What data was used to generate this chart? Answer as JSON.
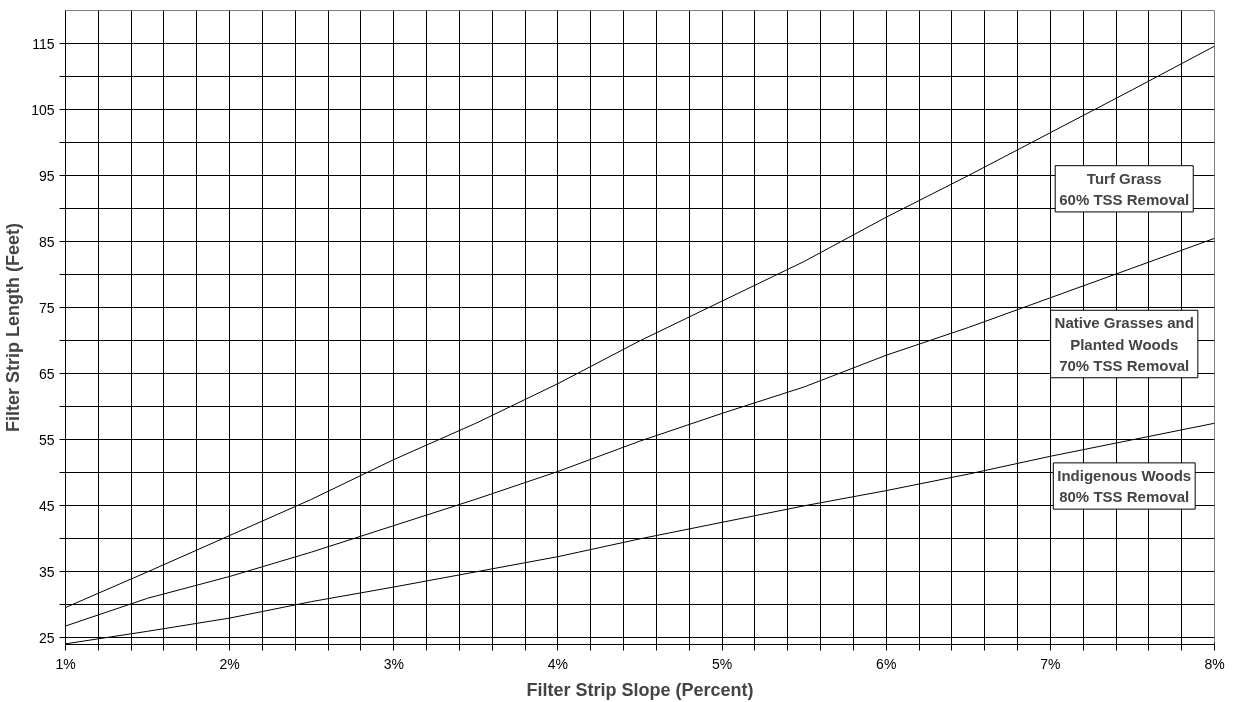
{
  "chart_data": {
    "type": "line",
    "xlabel": "Filter Strip Slope (Percent)",
    "ylabel": "Filter Strip Length (Feet)",
    "x": [
      1,
      1.5,
      2,
      2.5,
      3,
      3.5,
      4,
      4.5,
      5,
      5.5,
      6,
      6.5,
      7,
      7.5,
      8
    ],
    "series": [
      {
        "color": "#000000",
        "values": [
          29.6,
          35,
          40.5,
          46,
          52,
          57.5,
          63.5,
          70,
          76,
          82,
          88.7,
          95,
          101.5,
          108,
          114.6
        ]
      },
      {
        "color": "#000000",
        "values": [
          26.8,
          31,
          34.3,
          38,
          42,
          46,
          50.2,
          54.8,
          59,
          63,
          67.8,
          72,
          76.5,
          81,
          85.5
        ]
      },
      {
        "color": "#000000",
        "values": [
          24.1,
          26,
          28,
          30.5,
          32.7,
          35,
          37.3,
          40,
          42.5,
          45,
          47.3,
          49.8,
          52.5,
          55,
          57.5
        ]
      }
    ],
    "annotations": [
      "Turf Grass\n60% TSS Removal",
      "Native Grasses and\nPlanted Woods\n70% TSS Removal",
      "Indigenous Woods\n80% TSS Removal"
    ],
    "xlim": [
      1,
      8
    ],
    "ylim": [
      24,
      120
    ],
    "xticks": [
      {
        "value": 1,
        "label": "1%"
      },
      {
        "value": 1.2,
        "label": null
      },
      {
        "value": 1.4,
        "label": null
      },
      {
        "value": 1.6,
        "label": null
      },
      {
        "value": 1.8,
        "label": null
      },
      {
        "value": 2,
        "label": "2%"
      },
      {
        "value": 2.2,
        "label": null
      },
      {
        "value": 2.4,
        "label": null
      },
      {
        "value": 2.6,
        "label": null
      },
      {
        "value": 2.8,
        "label": null
      },
      {
        "value": 3,
        "label": "3%"
      },
      {
        "value": 3.2,
        "label": null
      },
      {
        "value": 3.4,
        "label": null
      },
      {
        "value": 3.6,
        "label": null
      },
      {
        "value": 3.8,
        "label": null
      },
      {
        "value": 4,
        "label": "4%"
      },
      {
        "value": 4.2,
        "label": null
      },
      {
        "value": 4.4,
        "label": null
      },
      {
        "value": 4.6,
        "label": null
      },
      {
        "value": 4.8,
        "label": null
      },
      {
        "value": 5,
        "label": "5%"
      },
      {
        "value": 5.2,
        "label": null
      },
      {
        "value": 5.4,
        "label": null
      },
      {
        "value": 5.6,
        "label": null
      },
      {
        "value": 5.8,
        "label": null
      },
      {
        "value": 6,
        "label": "6%"
      },
      {
        "value": 6.2,
        "label": null
      },
      {
        "value": 6.4,
        "label": null
      },
      {
        "value": 6.6,
        "label": null
      },
      {
        "value": 6.8,
        "label": null
      },
      {
        "value": 7,
        "label": "7%"
      },
      {
        "value": 7.2,
        "label": null
      },
      {
        "value": 7.4,
        "label": null
      },
      {
        "value": 7.6,
        "label": null
      },
      {
        "value": 7.8,
        "label": null
      },
      {
        "value": 8,
        "label": "8%"
      }
    ],
    "yticks": [
      25,
      {
        "value": 30,
        "label": null
      },
      35,
      {
        "value": 40,
        "label": null
      },
      45,
      {
        "value": 50,
        "label": null
      },
      55,
      {
        "value": 60,
        "label": null
      },
      65,
      {
        "value": 70,
        "label": null
      },
      75,
      {
        "value": 80,
        "label": null
      },
      85,
      {
        "value": 90,
        "label": null
      },
      95,
      {
        "value": 100,
        "label": null
      },
      105,
      {
        "value": 110,
        "label": null
      },
      115
    ],
    "grid": true,
    "marker": "none",
    "line_style": "solid"
  }
}
